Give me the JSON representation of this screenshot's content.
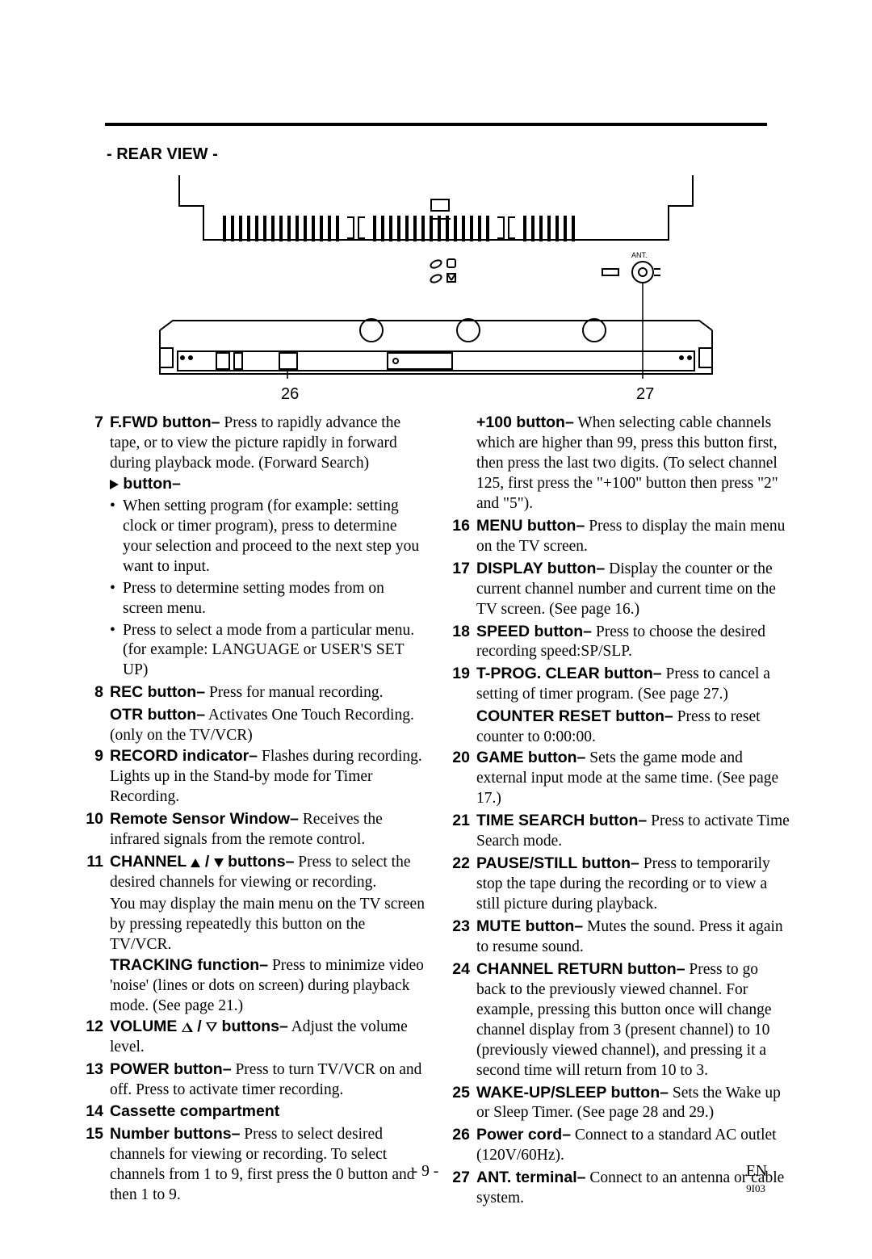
{
  "heading": "- REAR VIEW -",
  "diagram": {
    "ant_label": "ANT.",
    "callouts": {
      "c26": "26",
      "c27": "27"
    }
  },
  "left": [
    {
      "n": "7",
      "runs": [
        {
          "label": "F.FWD button–",
          "text": " Press to rapidly advance the tape, or to view the picture rapidly in forward during playback mode. (Forward Search)"
        }
      ],
      "extra_label_glyph": "tri-right",
      "extra_label_text": " button–",
      "bullets": [
        "When setting program (for example: setting clock or timer program), press to determine your selection and proceed to the next step you want to input.",
        "Press to determine setting modes from on screen menu.",
        "Press to select a mode from a particular menu. (for example: LANGUAGE or USER'S SET UP)"
      ]
    },
    {
      "n": "8",
      "runs": [
        {
          "label": "REC button–",
          "text": " Press for manual recording."
        }
      ],
      "sub": [
        {
          "label": "OTR button–",
          "text": " Activates One Touch Recording. (only on the TV/VCR)"
        }
      ]
    },
    {
      "n": "9",
      "runs": [
        {
          "label": "RECORD indicator–",
          "text": " Flashes during recording. Lights up in the Stand-by mode for Timer Recording."
        }
      ]
    },
    {
      "n": "10",
      "runs": [
        {
          "label": "Remote Sensor Window–",
          "text": " Receives the infrared signals from the remote control."
        }
      ]
    },
    {
      "n": "11",
      "runs": [
        {
          "label": "CHANNEL ",
          "glyph1": "tri-up",
          "mid": " / ",
          "glyph2": "tri-down",
          "label2": " buttons–",
          "text": " Press to select the desired channels for viewing or recording."
        }
      ],
      "sub": [
        {
          "text": "You may display the main menu on the TV screen by pressing repeatedly this button on the TV/VCR."
        },
        {
          "label": "TRACKING function–",
          "text": " Press to minimize video 'noise' (lines or dots on screen) during playback mode. (See page 21.)"
        }
      ]
    },
    {
      "n": "12",
      "runs": [
        {
          "label": "VOLUME ",
          "glyph1": "tri-up-o",
          "mid": " / ",
          "glyph2": "tri-down-o",
          "label2": " buttons–",
          "text": " Adjust the volume level."
        }
      ]
    },
    {
      "n": "13",
      "runs": [
        {
          "label": "POWER button–",
          "text": " Press to turn TV/VCR on and off.  Press to activate timer recording."
        }
      ]
    },
    {
      "n": "14",
      "runs": [
        {
          "label": "Cassette compartment",
          "text": ""
        }
      ]
    },
    {
      "n": "15",
      "runs": [
        {
          "label": "Number buttons–",
          "text": " Press to select desired channels for viewing or recording. To select channels from 1 to 9, first press the 0 button and then 1 to 9."
        }
      ]
    }
  ],
  "right": [
    {
      "n": "",
      "runs": [
        {
          "label": "+100 button–",
          "text": " When selecting cable channels which are higher than 99, press this button first, then press the last two digits. (To select channel 125, first press the \"+100\" button then press \"2\" and \"5\")."
        }
      ]
    },
    {
      "n": "16",
      "runs": [
        {
          "label": "MENU button–",
          "text": " Press to display the main menu on the TV screen."
        }
      ]
    },
    {
      "n": "17",
      "runs": [
        {
          "label": "DISPLAY button–",
          "text": " Display the counter or the current channel number and current time on the TV screen. (See page 16.)"
        }
      ]
    },
    {
      "n": "18",
      "runs": [
        {
          "label": "SPEED button–",
          "text": " Press to choose the desired recording speed:SP/SLP."
        }
      ]
    },
    {
      "n": "19",
      "runs": [
        {
          "label": "T-PROG. CLEAR button–",
          "text": " Press to cancel a setting of timer program. (See page 27.)"
        }
      ],
      "sub": [
        {
          "label": "COUNTER RESET button–",
          "text": " Press to reset counter to 0:00:00."
        }
      ]
    },
    {
      "n": "20",
      "runs": [
        {
          "label": "GAME button–",
          "text": " Sets the game mode and external input mode at the same time. (See page 17.)"
        }
      ]
    },
    {
      "n": "21",
      "runs": [
        {
          "label": "TIME SEARCH button–",
          "text": " Press to activate Time Search mode."
        }
      ]
    },
    {
      "n": "22",
      "runs": [
        {
          "label": "PAUSE/STILL button–",
          "text": " Press to temporarily stop the tape during the recording or to view a still picture during playback."
        }
      ]
    },
    {
      "n": "23",
      "runs": [
        {
          "label": "MUTE button–",
          "text": " Mutes the  sound. Press it again to resume sound."
        }
      ]
    },
    {
      "n": "24",
      "runs": [
        {
          "label": "CHANNEL RETURN button–",
          "text": " Press to go back to the previously viewed channel. For example, pressing this button once will change channel display from 3 (present channel) to 10 (previously viewed channel), and pressing it a second time will return from 10 to 3."
        }
      ]
    },
    {
      "n": "25",
      "runs": [
        {
          "label": "WAKE-UP/SLEEP button–",
          "text": " Sets the Wake up or Sleep Timer. (See page 28 and 29.)"
        }
      ]
    },
    {
      "n": "26",
      "runs": [
        {
          "label": "Power cord–",
          "text": " Connect to a standard AC outlet (120V/60Hz)."
        }
      ]
    },
    {
      "n": "27",
      "runs": [
        {
          "label": "ANT. terminal–",
          "text": " Connect to an antenna or cable system."
        }
      ]
    }
  ],
  "footer": {
    "page": "- 9 -",
    "lang": "EN",
    "code": "9I03"
  }
}
